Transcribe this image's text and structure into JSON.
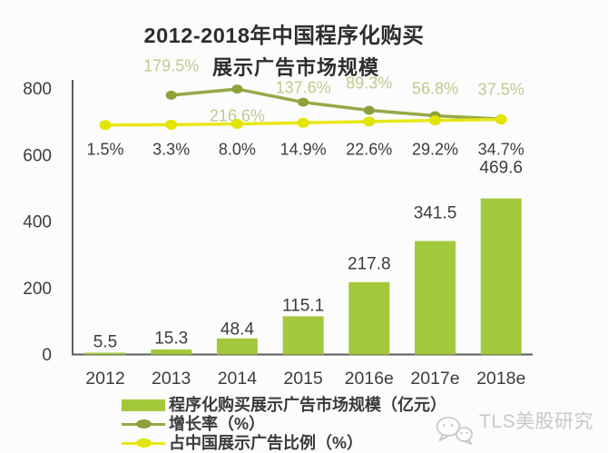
{
  "title": "2012-2018年中国程序化购买",
  "subtitle": "展示广告市场规模",
  "chart_data": {
    "type": "combo-bar-line",
    "categories": [
      "2012",
      "2013",
      "2014",
      "2015",
      "2016e",
      "2017e",
      "2018e"
    ],
    "series": [
      {
        "name": "程序化购买展示广告市场规模（亿元）",
        "type": "bar",
        "values": [
          5.5,
          15.3,
          48.4,
          115.1,
          217.8,
          341.5,
          469.6
        ],
        "labels": [
          "5.5",
          "15.3",
          "48.4",
          "115.1",
          "217.8",
          "341.5",
          "469.6"
        ]
      },
      {
        "name": "增长率（%）",
        "type": "line",
        "values": [
          null,
          179.5,
          216.6,
          137.6,
          89.3,
          56.8,
          37.5
        ],
        "labels": [
          null,
          "179.5%",
          "216.6%",
          "137.6%",
          "89.3%",
          "56.8%",
          "37.5%"
        ]
      },
      {
        "name": "占中国展示广告比例（%）",
        "type": "line",
        "values": [
          1.5,
          3.3,
          8.0,
          14.9,
          22.6,
          29.2,
          34.7
        ],
        "labels": [
          "1.5%",
          "3.3%",
          "8.0%",
          "14.9%",
          "22.6%",
          "29.2%",
          "34.7%"
        ]
      }
    ],
    "yaxis": {
      "range": [
        0,
        800
      ],
      "ticks": [
        0,
        200,
        400,
        600,
        800
      ],
      "tick_labels": [
        "0",
        "200",
        "400",
        "600",
        "800"
      ]
    },
    "xlabel": "",
    "ylabel": "",
    "grid": false,
    "legend_position": "bottom-left"
  },
  "legend": {
    "items": [
      {
        "label": "程序化购买展示广告市场规模（亿元）",
        "swatch": "bar"
      },
      {
        "label": "增长率（%）",
        "swatch": "olive-line"
      },
      {
        "label": "占中国展示广告比例（%）",
        "swatch": "yellow-line"
      }
    ]
  },
  "watermark": {
    "icon": "wechat-chat-bubbles-icon",
    "text": "TLS美股研究"
  },
  "colors": {
    "background": "#fcfcfc",
    "bar": "#a2c93c",
    "growth_line": "#95a949",
    "growth_marker": "#8ba23a",
    "ratio_line": "#e7e716",
    "ratio_marker": "#e2e403",
    "growth_label": "#bfca8e",
    "text_dark": "#3d3d3d",
    "title": "#2d2d2d",
    "axis": "#5b5b5b",
    "watermark": "#c9c9c9"
  }
}
